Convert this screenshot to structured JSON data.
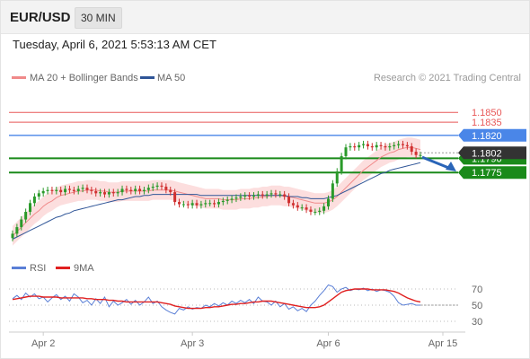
{
  "header": {
    "symbol": "EUR/USD",
    "timeframe": "30 MIN",
    "datetime": "Tuesday, April 6, 2021 5:53:13 AM CET"
  },
  "legend": {
    "ma20_label": "MA 20 + Bollinger Bands",
    "ma50_label": "MA 50",
    "credit": "Research © 2021 Trading Central",
    "rsi_label": "RSI",
    "rsi_ma_label": "9MA"
  },
  "colors": {
    "resistance": "#e85858",
    "pivot": "#4a86e8",
    "support": "#1a8a1a",
    "ma20": "#f08a8a",
    "ma50": "#2f5597",
    "bands": "#fbd3d3",
    "candle_up": "#2a9a2a",
    "candle_down": "#d03030",
    "rsi": "#5a7fd6",
    "rsi_ma": "#e02020",
    "arrow": "#2a65b8",
    "last_price_bg": "#333333"
  },
  "chart_data": [
    {
      "type": "candlestick",
      "title": "EUR/USD 30 MIN",
      "y_range": [
        1.7716,
        1.7863
      ],
      "x_labels": [
        "Apr 2",
        "Apr 3",
        "Apr 6",
        "Apr 15"
      ],
      "close": [
        1.7728,
        1.7734,
        1.7741,
        1.7748,
        1.7756,
        1.7762,
        1.7765,
        1.7767,
        1.7768,
        1.7767,
        1.7768,
        1.7766,
        1.7769,
        1.7768,
        1.7767,
        1.7769,
        1.777,
        1.7768,
        1.7767,
        1.7765,
        1.7766,
        1.7764,
        1.7766,
        1.7765,
        1.7766,
        1.7769,
        1.7768,
        1.7767,
        1.7769,
        1.7767,
        1.7768,
        1.777,
        1.7771,
        1.7772,
        1.7771,
        1.7768,
        1.7766,
        1.7757,
        1.7755,
        1.7755,
        1.7754,
        1.7756,
        1.7754,
        1.7755,
        1.7756,
        1.7756,
        1.7755,
        1.7757,
        1.7758,
        1.7759,
        1.776,
        1.7761,
        1.7762,
        1.7763,
        1.7762,
        1.7763,
        1.7764,
        1.7763,
        1.7764,
        1.7765,
        1.7764,
        1.7764,
        1.7762,
        1.7756,
        1.7754,
        1.7752,
        1.7752,
        1.775,
        1.7748,
        1.7748,
        1.7749,
        1.7753,
        1.776,
        1.7774,
        1.7785,
        1.7799,
        1.7807,
        1.7808,
        1.7807,
        1.7809,
        1.781,
        1.7808,
        1.7807,
        1.7809,
        1.7808,
        1.7807,
        1.7808,
        1.7809,
        1.781,
        1.7809,
        1.7808,
        1.7803,
        1.78,
        1.78
      ],
      "series": [
        {
          "name": "MA 20",
          "values": [
            1.7726,
            1.773,
            1.7734,
            1.7738,
            1.7742,
            1.7746,
            1.7749,
            1.7753,
            1.7756,
            1.7758,
            1.7761,
            1.7763,
            1.7764,
            1.7765,
            1.7766,
            1.7767,
            1.7767,
            1.7768,
            1.7768,
            1.7768,
            1.7767,
            1.7767,
            1.7766,
            1.7766,
            1.7766,
            1.7767,
            1.7767,
            1.7767,
            1.7767,
            1.7767,
            1.7767,
            1.7767,
            1.7768,
            1.7768,
            1.7768,
            1.7768,
            1.7768,
            1.7767,
            1.7766,
            1.7765,
            1.7764,
            1.7763,
            1.7762,
            1.7761,
            1.776,
            1.776,
            1.776,
            1.776,
            1.7759,
            1.7759,
            1.7759,
            1.7759,
            1.776,
            1.776,
            1.776,
            1.7761,
            1.7761,
            1.7762,
            1.7762,
            1.7763,
            1.7763,
            1.7763,
            1.7762,
            1.7762,
            1.7761,
            1.776,
            1.7759,
            1.7758,
            1.7757,
            1.7756,
            1.7756,
            1.7756,
            1.7757,
            1.7759,
            1.7762,
            1.7766,
            1.777,
            1.7774,
            1.7778,
            1.7782,
            1.7786,
            1.7789,
            1.7792,
            1.7795,
            1.7798,
            1.78,
            1.7802,
            1.7803,
            1.7805,
            1.7806,
            1.7807,
            1.7807,
            1.7806,
            1.7805
          ]
        },
        {
          "name": "MA 50",
          "values": [
            1.7723,
            1.7725,
            1.7727,
            1.7729,
            1.7731,
            1.7733,
            1.7735,
            1.7737,
            1.7739,
            1.7741,
            1.7743,
            1.7744,
            1.7746,
            1.7747,
            1.7749,
            1.775,
            1.7751,
            1.7752,
            1.7753,
            1.7754,
            1.7755,
            1.7756,
            1.7757,
            1.7758,
            1.7759,
            1.7759,
            1.776,
            1.7761,
            1.7762,
            1.7762,
            1.7763,
            1.7763,
            1.7764,
            1.7764,
            1.7764,
            1.7764,
            1.7764,
            1.7764,
            1.7764,
            1.7764,
            1.7764,
            1.7764,
            1.7764,
            1.7763,
            1.7763,
            1.7763,
            1.7763,
            1.7763,
            1.7763,
            1.7763,
            1.7763,
            1.7763,
            1.7763,
            1.7763,
            1.7763,
            1.7763,
            1.7763,
            1.7763,
            1.7763,
            1.7763,
            1.7763,
            1.7763,
            1.7763,
            1.7762,
            1.7762,
            1.7762,
            1.7761,
            1.7761,
            1.776,
            1.776,
            1.776,
            1.776,
            1.7761,
            1.7762,
            1.7763,
            1.7765,
            1.7767,
            1.7769,
            1.7771,
            1.7773,
            1.7775,
            1.7777,
            1.7779,
            1.7781,
            1.7783,
            1.7784,
            1.7786,
            1.7787,
            1.7788,
            1.7789,
            1.779,
            1.7791,
            1.7792,
            1.7793
          ]
        }
      ],
      "bollinger_bands": {
        "upper_offset": 0.0009,
        "lower_offset": 0.0009
      },
      "levels": [
        {
          "label": "1.1850",
          "value": 1.7839,
          "kind": "resistance"
        },
        {
          "label": "1.1835",
          "value": 1.783,
          "kind": "resistance"
        },
        {
          "label": "1.1820",
          "value": 1.7818,
          "kind": "pivot"
        },
        {
          "label": "1.1790",
          "value": 1.7797,
          "kind": "support"
        },
        {
          "label": "1.1775",
          "value": 1.7784,
          "kind": "support"
        }
      ],
      "last_price": {
        "label": "1.1802",
        "value": 1.7802
      },
      "arrow_forecast": {
        "from": 1.7798,
        "to": 1.7785
      }
    },
    {
      "type": "line",
      "title": "RSI",
      "y_ticks": [
        70,
        50,
        30
      ],
      "ylim": [
        30,
        70
      ],
      "series": [
        {
          "name": "RSI",
          "values": [
            58,
            62,
            57,
            65,
            60,
            64,
            58,
            60,
            54,
            59,
            63,
            57,
            61,
            55,
            64,
            60,
            53,
            56,
            50,
            58,
            52,
            60,
            48,
            55,
            50,
            53,
            57,
            51,
            56,
            50,
            54,
            60,
            52,
            55,
            48,
            44,
            41,
            39,
            46,
            44,
            48,
            45,
            47,
            46,
            50,
            48,
            52,
            49,
            53,
            50,
            55,
            52,
            56,
            53,
            57,
            52,
            60,
            55,
            54,
            50,
            55,
            48,
            52,
            45,
            48,
            43,
            46,
            42,
            50,
            55,
            62,
            68,
            75,
            73,
            66,
            70,
            72,
            68,
            70,
            69,
            71,
            68,
            70,
            67,
            69,
            68,
            66,
            61,
            53,
            50,
            51,
            52,
            50,
            50
          ]
        },
        {
          "name": "9MA",
          "values": [
            57,
            58,
            59,
            60,
            61,
            61,
            61,
            60,
            60,
            60,
            60,
            59,
            59,
            59,
            59,
            59,
            59,
            58,
            58,
            57,
            57,
            57,
            56,
            56,
            55,
            55,
            54,
            54,
            54,
            54,
            54,
            54,
            54,
            54,
            53,
            52,
            51,
            49,
            48,
            47,
            46,
            46,
            46,
            46,
            47,
            47,
            48,
            48,
            49,
            50,
            51,
            51,
            52,
            52,
            53,
            54,
            54,
            55,
            55,
            55,
            54,
            53,
            52,
            51,
            50,
            49,
            48,
            47,
            47,
            47,
            48,
            50,
            54,
            58,
            62,
            66,
            68,
            69,
            70,
            70,
            70,
            70,
            69,
            69,
            69,
            69,
            68,
            67,
            65,
            62,
            59,
            57,
            55,
            54
          ]
        }
      ]
    }
  ]
}
